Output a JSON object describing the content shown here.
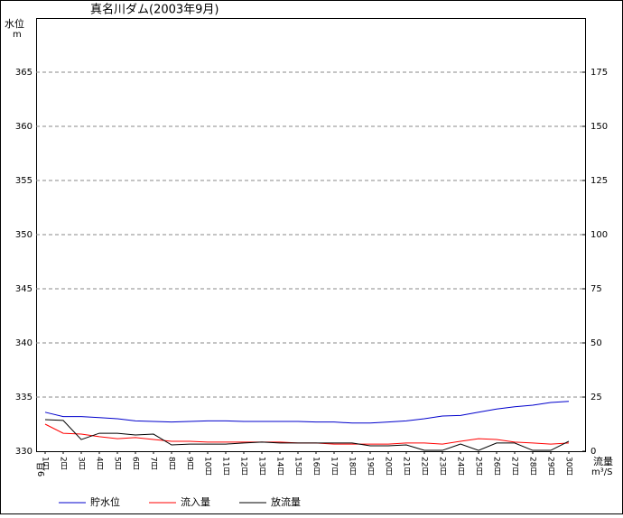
{
  "chart_data": {
    "type": "line",
    "title": "真名川ダム(2003年9月)",
    "y_label": "水位",
    "y_unit": "m",
    "y2_label": "流量",
    "y2_unit": "m³/S",
    "month_label": "9月",
    "categories": [
      "1日",
      "2日",
      "3日",
      "4日",
      "5日",
      "6日",
      "7日",
      "8日",
      "9日",
      "10日",
      "11日",
      "12日",
      "13日",
      "14日",
      "15日",
      "16日",
      "17日",
      "18日",
      "19日",
      "20日",
      "21日",
      "22日",
      "23日",
      "24日",
      "25日",
      "26日",
      "27日",
      "28日",
      "29日",
      "30日"
    ],
    "ylim": [
      330,
      370
    ],
    "yticks": [
      330,
      335,
      340,
      345,
      350,
      355,
      360,
      365
    ],
    "y2lim": [
      0,
      200
    ],
    "y2ticks": [
      0,
      25,
      50,
      75,
      100,
      125,
      150,
      175
    ],
    "grid": true,
    "series": [
      {
        "name": "貯水位",
        "color": "#0000cc",
        "axis": "y",
        "values": [
          333.6,
          333.2,
          333.2,
          333.1,
          333.0,
          332.8,
          332.75,
          332.7,
          332.75,
          332.8,
          332.8,
          332.75,
          332.75,
          332.75,
          332.75,
          332.7,
          332.7,
          332.6,
          332.6,
          332.7,
          332.8,
          333.0,
          333.25,
          333.3,
          333.6,
          333.9,
          334.1,
          334.25,
          334.5,
          334.6
        ]
      },
      {
        "name": "流入量",
        "color": "#ff0000",
        "axis": "y2",
        "values": [
          12.5,
          8.3,
          7.9,
          6.7,
          5.8,
          6.3,
          5.4,
          4.6,
          4.6,
          4.2,
          4.2,
          4.2,
          4.2,
          4.2,
          3.8,
          3.8,
          3.3,
          3.3,
          3.3,
          3.3,
          3.8,
          3.8,
          3.3,
          4.6,
          5.8,
          5.4,
          4.2,
          3.8,
          3.3,
          3.8
        ]
      },
      {
        "name": "放流量",
        "color": "#000000",
        "axis": "y2",
        "values": [
          14.6,
          14.2,
          5.4,
          8.3,
          8.3,
          7.5,
          7.9,
          2.9,
          3.3,
          3.3,
          3.3,
          3.8,
          4.2,
          3.8,
          3.8,
          3.8,
          3.8,
          3.8,
          2.5,
          2.5,
          2.9,
          0.4,
          0.4,
          3.3,
          0.4,
          3.8,
          3.8,
          0.4,
          0.4,
          4.6
        ]
      }
    ]
  }
}
